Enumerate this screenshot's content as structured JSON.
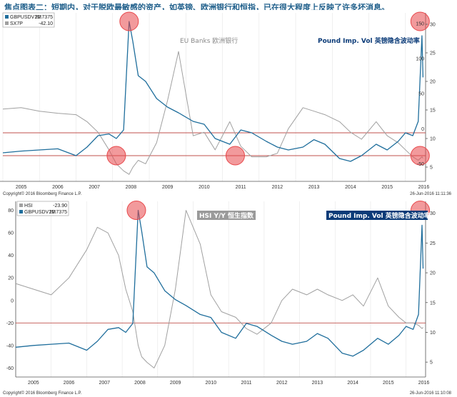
{
  "header": {
    "title": "焦点图表二：短期内，对于脱欧最敏感的资产，如英镑、欧洲银行和恒指，已在很大程度上反映了许多坏消息。"
  },
  "colors": {
    "gbp": "#1f6e9c",
    "gray": "#a0a0a0",
    "ref": "#c0504d",
    "highlight": "#e8474a",
    "box_blue": "#0b3b78"
  },
  "chart_data": [
    {
      "type": "line",
      "legend": [
        {
          "name": "GBPUSDV1M",
          "value": "20.7375",
          "color": "#1f6e9c"
        },
        {
          "name": "SX7P",
          "value": "-42.10",
          "color": "#a0a0a0"
        }
      ],
      "x_tick_labels": [
        "2005",
        "2006",
        "2007",
        "2008",
        "2009",
        "2010",
        "2011",
        "2012",
        "2013",
        "2014",
        "2015",
        "2016"
      ],
      "x": [
        2005,
        2005.5,
        2006,
        2006.5,
        2007,
        2007.3,
        2007.6,
        2007.9,
        2008.1,
        2008.3,
        2008.45,
        2008.55,
        2008.7,
        2008.9,
        2009.2,
        2009.5,
        2009.8,
        2010.2,
        2010.5,
        2010.8,
        2011.2,
        2011.5,
        2011.8,
        2012.2,
        2012.5,
        2012.8,
        2013.2,
        2013.5,
        2013.8,
        2014.2,
        2014.5,
        2014.8,
        2015.2,
        2015.5,
        2015.8,
        2016.0,
        2016.2,
        2016.35,
        2016.45,
        2016.48
      ],
      "y_right": {
        "ticks": [
          5,
          10,
          15,
          20,
          25,
          30
        ],
        "range": [
          2.5,
          32
        ]
      },
      "y_left": {
        "ticks": [
          -50,
          0,
          50,
          100,
          150
        ],
        "range": [
          -75,
          165
        ]
      },
      "series": [
        {
          "name": "GBPUSDV1M",
          "axis": "right",
          "values": [
            7.5,
            7.8,
            8,
            8.2,
            7,
            8.5,
            10.5,
            10.8,
            10,
            11.5,
            30.5,
            27,
            21,
            20,
            17,
            15.5,
            14.5,
            13,
            12.5,
            10,
            9,
            11.5,
            11,
            9.5,
            8.5,
            8,
            8.5,
            9.8,
            9,
            6.5,
            6,
            7,
            9,
            8,
            9.5,
            11,
            10.5,
            13,
            28,
            20.7
          ]
        },
        {
          "name": "SX7P",
          "axis": "left",
          "values": [
            28,
            30,
            25,
            22,
            20,
            10,
            -5,
            -30,
            -50,
            -60,
            -65,
            -55,
            -45,
            -50,
            -20,
            40,
            110,
            -10,
            -5,
            -30,
            10,
            -25,
            -40,
            -40,
            -35,
            0,
            30,
            25,
            20,
            10,
            -5,
            -15,
            10,
            -10,
            -20,
            -30,
            -40,
            -45,
            -40,
            -42.1
          ]
        }
      ],
      "ref_lines": [
        {
          "axis": "right",
          "value": 11
        },
        {
          "axis": "right",
          "value": 7
        }
      ],
      "highlights": [
        {
          "x": 2008.45,
          "axis": "right",
          "y": 30.5
        },
        {
          "x": 2008.1,
          "axis": "right",
          "y": 7
        },
        {
          "x": 2011.35,
          "axis": "right",
          "y": 7
        },
        {
          "x": 2016.4,
          "axis": "right",
          "y": 30.5
        },
        {
          "x": 2016.4,
          "axis": "right",
          "y": 7
        }
      ],
      "annotations": {
        "gray": "EU Banks 欧洲银行",
        "blue": "Pound Imp. Vol 英镑隐含波动率"
      },
      "footer_left": "Copyright© 2016 Bloomberg Finance L.P.",
      "footer_right": "26-Jun-2016 11:11:36"
    },
    {
      "type": "line",
      "legend": [
        {
          "name": "HSI",
          "value": "-23.90",
          "color": "#a0a0a0"
        },
        {
          "name": "GBPUSDV1M",
          "value": "20.7375",
          "color": "#1f6e9c"
        }
      ],
      "x_tick_labels": [
        "2005",
        "2006",
        "2007",
        "2008",
        "2009",
        "2010",
        "2011",
        "2012",
        "2013",
        "2014",
        "2015",
        "2016"
      ],
      "x": [
        2005,
        2005.5,
        2006,
        2006.5,
        2007,
        2007.3,
        2007.6,
        2007.9,
        2008.1,
        2008.3,
        2008.45,
        2008.55,
        2008.7,
        2008.9,
        2009.2,
        2009.5,
        2009.8,
        2010.2,
        2010.5,
        2010.8,
        2011.2,
        2011.5,
        2011.8,
        2012.2,
        2012.5,
        2012.8,
        2013.2,
        2013.5,
        2013.8,
        2014.2,
        2014.5,
        2014.8,
        2015.2,
        2015.5,
        2015.8,
        2016.0,
        2016.2,
        2016.35,
        2016.45,
        2016.48
      ],
      "y_left": {
        "ticks": [
          -60,
          -40,
          -20,
          0,
          20,
          40,
          60,
          80
        ],
        "range": [
          -68,
          88
        ]
      },
      "y_right": {
        "ticks": [
          5,
          10,
          15,
          20,
          25,
          30
        ],
        "range": [
          2.5,
          32
        ]
      },
      "series": [
        {
          "name": "HSI",
          "axis": "left",
          "values": [
            15,
            10,
            5,
            20,
            45,
            65,
            60,
            40,
            10,
            -10,
            -40,
            -50,
            -55,
            -60,
            -40,
            10,
            80,
            50,
            5,
            -10,
            -15,
            -25,
            -30,
            -20,
            0,
            10,
            5,
            10,
            5,
            0,
            5,
            -5,
            20,
            -5,
            -15,
            -20,
            -20,
            -22,
            -25,
            -23.9
          ]
        },
        {
          "name": "GBPUSDV1M",
          "axis": "right",
          "values": [
            7.5,
            7.8,
            8,
            8.2,
            7,
            8.5,
            10.5,
            10.8,
            10,
            11.5,
            30.5,
            27,
            21,
            20,
            17,
            15.5,
            14.5,
            13,
            12.5,
            10,
            9,
            11.5,
            11,
            9.5,
            8.5,
            8,
            8.5,
            9.8,
            9,
            6.5,
            6,
            7,
            9,
            8,
            9.5,
            11,
            10.5,
            13,
            28,
            20.7
          ]
        }
      ],
      "ref_lines": [
        {
          "axis": "left",
          "value": -20
        }
      ],
      "highlights": [
        {
          "x": 2008.4,
          "axis": "right",
          "y": 30.5
        },
        {
          "x": 2016.4,
          "axis": "right",
          "y": 30.5
        }
      ],
      "annotations": {
        "gray": "HSI Y/Y 恒生指数",
        "blue": "Pound Imp. Vol 英镑隐含波动率"
      },
      "footer_left": "Copyright© 2016 Bloomberg Finance L.P.",
      "footer_right": "26-Jun-2016 11:10:08"
    }
  ]
}
